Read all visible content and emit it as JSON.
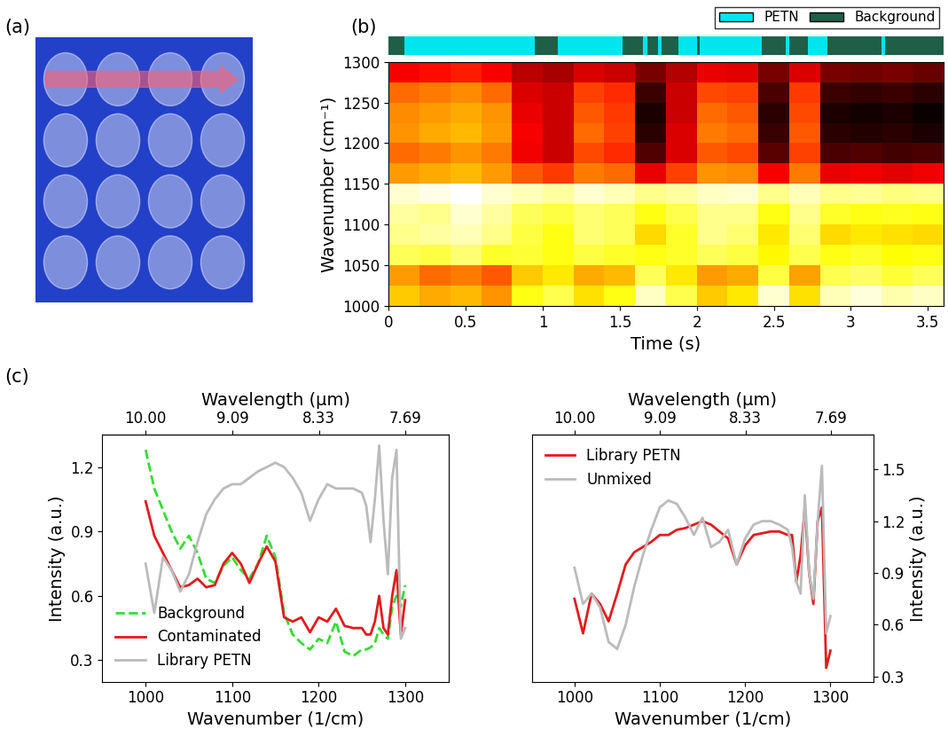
{
  "chart_data": [
    {
      "type": "image",
      "panel_label": "(a)"
    },
    {
      "type": "heatmap",
      "panel_label": "(b)",
      "xlabel": "Time (s)",
      "ylabel": "Wavenumber (cm⁻¹)",
      "xlim": [
        0,
        3.6
      ],
      "ylim": [
        1000,
        1300
      ],
      "xticks": [
        0,
        0.5,
        1,
        1.5,
        2,
        2.5,
        3,
        3.5
      ],
      "yticks": [
        1000,
        1050,
        1100,
        1150,
        1200,
        1250,
        1300
      ],
      "time_edges": [
        0,
        0.2,
        0.4,
        0.6,
        0.8,
        1.0,
        1.2,
        1.4,
        1.6,
        1.8,
        2.0,
        2.2,
        2.4,
        2.6,
        2.8,
        3.0,
        3.2,
        3.4,
        3.6
      ],
      "wavenumber_edges": [
        1000,
        1025,
        1050,
        1075,
        1100,
        1125,
        1150,
        1175,
        1200,
        1225,
        1250,
        1275,
        1300
      ],
      "cells": [
        [
          0.62,
          0.58,
          0.6,
          0.55,
          0.7,
          0.75,
          0.65,
          0.7,
          0.85,
          0.75,
          0.62,
          0.66,
          0.86,
          0.65,
          0.84,
          0.87,
          0.83,
          0.85
        ],
        [
          0.56,
          0.5,
          0.52,
          0.48,
          0.62,
          0.66,
          0.58,
          0.6,
          0.76,
          0.66,
          0.56,
          0.58,
          0.74,
          0.57,
          0.75,
          0.77,
          0.73,
          0.76
        ],
        [
          0.76,
          0.74,
          0.78,
          0.72,
          0.73,
          0.7,
          0.74,
          0.72,
          0.7,
          0.72,
          0.76,
          0.74,
          0.68,
          0.75,
          0.7,
          0.72,
          0.69,
          0.7
        ],
        [
          0.8,
          0.82,
          0.84,
          0.8,
          0.74,
          0.7,
          0.78,
          0.76,
          0.64,
          0.72,
          0.8,
          0.78,
          0.66,
          0.78,
          0.64,
          0.66,
          0.65,
          0.64
        ],
        [
          0.82,
          0.8,
          0.86,
          0.82,
          0.76,
          0.74,
          0.78,
          0.76,
          0.7,
          0.75,
          0.8,
          0.8,
          0.7,
          0.8,
          0.72,
          0.7,
          0.71,
          0.7
        ],
        [
          0.86,
          0.88,
          0.9,
          0.86,
          0.84,
          0.82,
          0.86,
          0.84,
          0.8,
          0.82,
          0.85,
          0.86,
          0.8,
          0.84,
          0.8,
          0.81,
          0.79,
          0.8
        ],
        [
          0.56,
          0.58,
          0.6,
          0.56,
          0.48,
          0.44,
          0.52,
          0.5,
          0.34,
          0.45,
          0.55,
          0.54,
          0.36,
          0.52,
          0.34,
          0.35,
          0.33,
          0.35
        ],
        [
          0.5,
          0.52,
          0.55,
          0.52,
          0.35,
          0.3,
          0.46,
          0.42,
          0.15,
          0.32,
          0.48,
          0.46,
          0.16,
          0.45,
          0.14,
          0.15,
          0.13,
          0.14
        ],
        [
          0.55,
          0.58,
          0.6,
          0.56,
          0.36,
          0.3,
          0.5,
          0.45,
          0.1,
          0.32,
          0.52,
          0.5,
          0.12,
          0.48,
          0.1,
          0.09,
          0.1,
          0.08
        ],
        [
          0.54,
          0.56,
          0.58,
          0.55,
          0.34,
          0.3,
          0.48,
          0.44,
          0.08,
          0.3,
          0.5,
          0.48,
          0.1,
          0.46,
          0.08,
          0.07,
          0.08,
          0.06
        ],
        [
          0.5,
          0.52,
          0.54,
          0.5,
          0.32,
          0.3,
          0.45,
          0.42,
          0.12,
          0.3,
          0.46,
          0.45,
          0.14,
          0.44,
          0.12,
          0.11,
          0.12,
          0.1
        ],
        [
          0.36,
          0.38,
          0.4,
          0.36,
          0.28,
          0.26,
          0.32,
          0.3,
          0.2,
          0.27,
          0.34,
          0.33,
          0.2,
          0.32,
          0.2,
          0.19,
          0.2,
          0.18
        ]
      ],
      "classes": [
        {
          "name": "PETN",
          "color": "#00E5EE"
        },
        {
          "name": "Background",
          "color": "#1F5F48"
        }
      ],
      "segments": [
        {
          "class": "Background",
          "start": 0,
          "end": 0.1
        },
        {
          "class": "PETN",
          "start": 0.1,
          "end": 0.95
        },
        {
          "class": "Background",
          "start": 0.95,
          "end": 1.1
        },
        {
          "class": "PETN",
          "start": 1.1,
          "end": 1.52
        },
        {
          "class": "Background",
          "start": 1.52,
          "end": 1.65
        },
        {
          "class": "PETN",
          "start": 1.65,
          "end": 1.68
        },
        {
          "class": "Background",
          "start": 1.68,
          "end": 1.75
        },
        {
          "class": "PETN",
          "start": 1.75,
          "end": 1.77
        },
        {
          "class": "Background",
          "start": 1.77,
          "end": 1.88
        },
        {
          "class": "PETN",
          "start": 1.88,
          "end": 2.0
        },
        {
          "class": "Background",
          "start": 2.0,
          "end": 2.02
        },
        {
          "class": "PETN",
          "start": 2.02,
          "end": 2.42
        },
        {
          "class": "Background",
          "start": 2.42,
          "end": 2.58
        },
        {
          "class": "PETN",
          "start": 2.58,
          "end": 2.6
        },
        {
          "class": "Background",
          "start": 2.6,
          "end": 2.72
        },
        {
          "class": "PETN",
          "start": 2.72,
          "end": 2.85
        },
        {
          "class": "Background",
          "start": 2.85,
          "end": 3.2
        },
        {
          "class": "PETN",
          "start": 3.2,
          "end": 3.22
        },
        {
          "class": "Background",
          "start": 3.22,
          "end": 3.6
        }
      ],
      "legend": "upper right"
    },
    {
      "type": "line",
      "panel_label": "(c)",
      "xlabel": "Wavenumber (1/cm)",
      "ylabel": "Intensity (a.u.)",
      "x2label": "Wavelength (μm)",
      "xlim": [
        950,
        1350
      ],
      "ylim": [
        0.2,
        1.35
      ],
      "xticks": [
        1000,
        1100,
        1200,
        1300
      ],
      "yticks": [
        0.3,
        0.6,
        0.9,
        1.2
      ],
      "x2ticks": [
        {
          "value": 10,
          "label": "10.00"
        },
        9.09,
        8.33,
        7.69
      ],
      "x": [
        1000,
        1010,
        1020,
        1030,
        1040,
        1050,
        1060,
        1070,
        1080,
        1090,
        1100,
        1110,
        1120,
        1130,
        1140,
        1150,
        1160,
        1170,
        1180,
        1190,
        1200,
        1210,
        1220,
        1230,
        1240,
        1250,
        1255,
        1260,
        1265,
        1270,
        1275,
        1280,
        1285,
        1290,
        1295,
        1300
      ],
      "series": [
        {
          "name": "Background",
          "color": "#33DD33",
          "line_style": "dashed",
          "values": [
            1.28,
            1.1,
            1.0,
            0.9,
            0.82,
            0.88,
            0.8,
            0.68,
            0.66,
            0.74,
            0.78,
            0.72,
            0.68,
            0.75,
            0.88,
            0.78,
            0.52,
            0.42,
            0.38,
            0.35,
            0.4,
            0.38,
            0.48,
            0.34,
            0.32,
            0.35,
            0.35,
            0.36,
            0.38,
            0.45,
            0.42,
            0.4,
            0.55,
            0.6,
            0.55,
            0.65
          ]
        },
        {
          "name": "Contaminated",
          "color": "#E41A1C",
          "line_style": "solid",
          "values": [
            1.04,
            0.88,
            0.8,
            0.72,
            0.64,
            0.65,
            0.68,
            0.64,
            0.65,
            0.75,
            0.8,
            0.75,
            0.66,
            0.75,
            0.83,
            0.76,
            0.5,
            0.48,
            0.5,
            0.43,
            0.5,
            0.48,
            0.54,
            0.46,
            0.45,
            0.45,
            0.42,
            0.42,
            0.48,
            0.6,
            0.45,
            0.42,
            0.6,
            0.72,
            0.42,
            0.58
          ]
        },
        {
          "name": "Library PETN",
          "color": "#BBBBBB",
          "line_style": "solid",
          "values": [
            0.75,
            0.52,
            0.78,
            0.72,
            0.62,
            0.7,
            0.85,
            0.98,
            1.05,
            1.1,
            1.12,
            1.12,
            1.15,
            1.18,
            1.2,
            1.22,
            1.2,
            1.15,
            1.08,
            0.95,
            1.05,
            1.12,
            1.1,
            1.1,
            1.1,
            1.08,
            1.02,
            0.85,
            1.05,
            1.3,
            0.95,
            0.7,
            1.15,
            1.28,
            0.4,
            0.45
          ]
        }
      ],
      "legend": "lower left"
    },
    {
      "type": "line",
      "xlabel": "Wavenumber (1/cm)",
      "ylabel": "Intensity (a.u.)",
      "x2label": "Wavelength (μm)",
      "xlim": [
        950,
        1350
      ],
      "ylim": [
        0.27,
        1.7
      ],
      "xticks": [
        1000,
        1100,
        1200,
        1300
      ],
      "yticks": [
        0.3,
        0.6,
        0.9,
        1.2,
        1.5
      ],
      "x2ticks": [
        {
          "value": 10,
          "label": "10.00"
        },
        9.09,
        8.33,
        7.69
      ],
      "x": [
        1000,
        1010,
        1020,
        1030,
        1040,
        1050,
        1060,
        1070,
        1080,
        1090,
        1100,
        1110,
        1120,
        1130,
        1140,
        1150,
        1160,
        1170,
        1180,
        1190,
        1200,
        1210,
        1220,
        1230,
        1240,
        1250,
        1255,
        1260,
        1265,
        1270,
        1275,
        1280,
        1285,
        1290,
        1295,
        1300
      ],
      "series": [
        {
          "name": "Library PETN",
          "color": "#E41A1C",
          "line_style": "solid",
          "values": [
            0.75,
            0.55,
            0.78,
            0.72,
            0.62,
            0.78,
            0.95,
            1.02,
            1.05,
            1.08,
            1.12,
            1.12,
            1.15,
            1.16,
            1.18,
            1.2,
            1.18,
            1.14,
            1.1,
            0.95,
            1.06,
            1.12,
            1.13,
            1.14,
            1.14,
            1.12,
            1.12,
            0.85,
            1.0,
            1.28,
            0.9,
            0.72,
            1.2,
            1.28,
            0.35,
            0.45
          ]
        },
        {
          "name": "Unmixed",
          "color": "#BBBBBB",
          "line_style": "solid",
          "values": [
            0.93,
            0.72,
            0.78,
            0.7,
            0.5,
            0.46,
            0.6,
            0.82,
            1.0,
            1.15,
            1.28,
            1.32,
            1.3,
            1.22,
            1.12,
            1.22,
            1.05,
            1.08,
            1.15,
            0.95,
            1.1,
            1.18,
            1.2,
            1.2,
            1.18,
            1.15,
            1.05,
            0.85,
            0.78,
            1.35,
            0.9,
            0.75,
            1.2,
            1.52,
            0.55,
            0.65
          ]
        }
      ],
      "legend": "upper left"
    }
  ]
}
